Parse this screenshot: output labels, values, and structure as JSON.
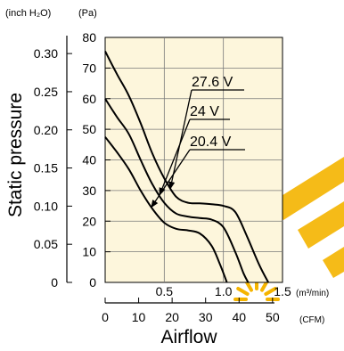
{
  "chart_data": {
    "type": "line",
    "ylabel": "Static pressure",
    "xlabel": "Airflow",
    "unit_y_in": "(inch H₂O)",
    "unit_y_pa": "(Pa)",
    "unit_x_m3": "(m³/min)",
    "unit_x_cfm": "(CFM)",
    "x_m3_ticks": [
      "0.5",
      "1.0",
      "1.5"
    ],
    "x_m3_tick_values": [
      0.5,
      1.0,
      1.5
    ],
    "x_cfm_ticks": [
      "0",
      "10",
      "20",
      "30",
      "40",
      "50"
    ],
    "x_cfm_tick_values": [
      0,
      10,
      20,
      30,
      40,
      50
    ],
    "y_pa_ticks": [
      "0",
      "10",
      "20",
      "30",
      "40",
      "50",
      "60",
      "70",
      "80"
    ],
    "y_pa_tick_values": [
      0,
      10,
      20,
      30,
      40,
      50,
      60,
      70,
      80
    ],
    "y_in_ticks": [
      "0",
      "0.05",
      "0.10",
      "0.15",
      "0.20",
      "0.25",
      "0.30"
    ],
    "y_in_tick_values": [
      0,
      0.05,
      0.1,
      0.15,
      0.2,
      0.25,
      0.3
    ],
    "xlim_m3": [
      0,
      1.5
    ],
    "ylim_pa": [
      0,
      80
    ],
    "grid": true,
    "background_color": "#fdf6dc",
    "watermark_color": "#f5b400",
    "series": [
      {
        "name": "27.6 V",
        "points": [
          [
            0.0,
            75.5
          ],
          [
            0.1,
            68.0
          ],
          [
            0.2,
            61.0
          ],
          [
            0.3,
            52.0
          ],
          [
            0.4,
            42.0
          ],
          [
            0.5,
            34.0
          ],
          [
            0.6,
            28.0
          ],
          [
            0.7,
            26.0
          ],
          [
            0.8,
            25.8
          ],
          [
            0.9,
            25.5
          ],
          [
            1.0,
            25.0
          ],
          [
            1.1,
            23.0
          ],
          [
            1.2,
            15.0
          ],
          [
            1.3,
            6.0
          ],
          [
            1.38,
            0.0
          ]
        ]
      },
      {
        "name": "24 V",
        "points": [
          [
            0.0,
            60.0
          ],
          [
            0.1,
            54.0
          ],
          [
            0.2,
            48.5
          ],
          [
            0.3,
            40.0
          ],
          [
            0.4,
            32.0
          ],
          [
            0.5,
            26.0
          ],
          [
            0.6,
            22.5
          ],
          [
            0.7,
            21.5
          ],
          [
            0.8,
            21.0
          ],
          [
            0.9,
            20.5
          ],
          [
            1.0,
            18.0
          ],
          [
            1.1,
            10.0
          ],
          [
            1.17,
            3.0
          ],
          [
            1.21,
            0.0
          ]
        ]
      },
      {
        "name": "20.4 V",
        "points": [
          [
            0.0,
            47.5
          ],
          [
            0.1,
            42.5
          ],
          [
            0.2,
            37.0
          ],
          [
            0.3,
            30.0
          ],
          [
            0.4,
            24.0
          ],
          [
            0.5,
            19.5
          ],
          [
            0.6,
            17.5
          ],
          [
            0.7,
            17.0
          ],
          [
            0.8,
            16.0
          ],
          [
            0.9,
            12.0
          ],
          [
            0.97,
            6.0
          ],
          [
            1.03,
            0.0
          ]
        ]
      }
    ],
    "annotations": [
      {
        "text": "27.6 V",
        "arrow_to": [
          0.55,
          30.5
        ]
      },
      {
        "text": "24 V",
        "arrow_to": [
          0.46,
          28.5
        ]
      },
      {
        "text": "20.4 V",
        "arrow_to": [
          0.39,
          24.5
        ]
      }
    ]
  }
}
